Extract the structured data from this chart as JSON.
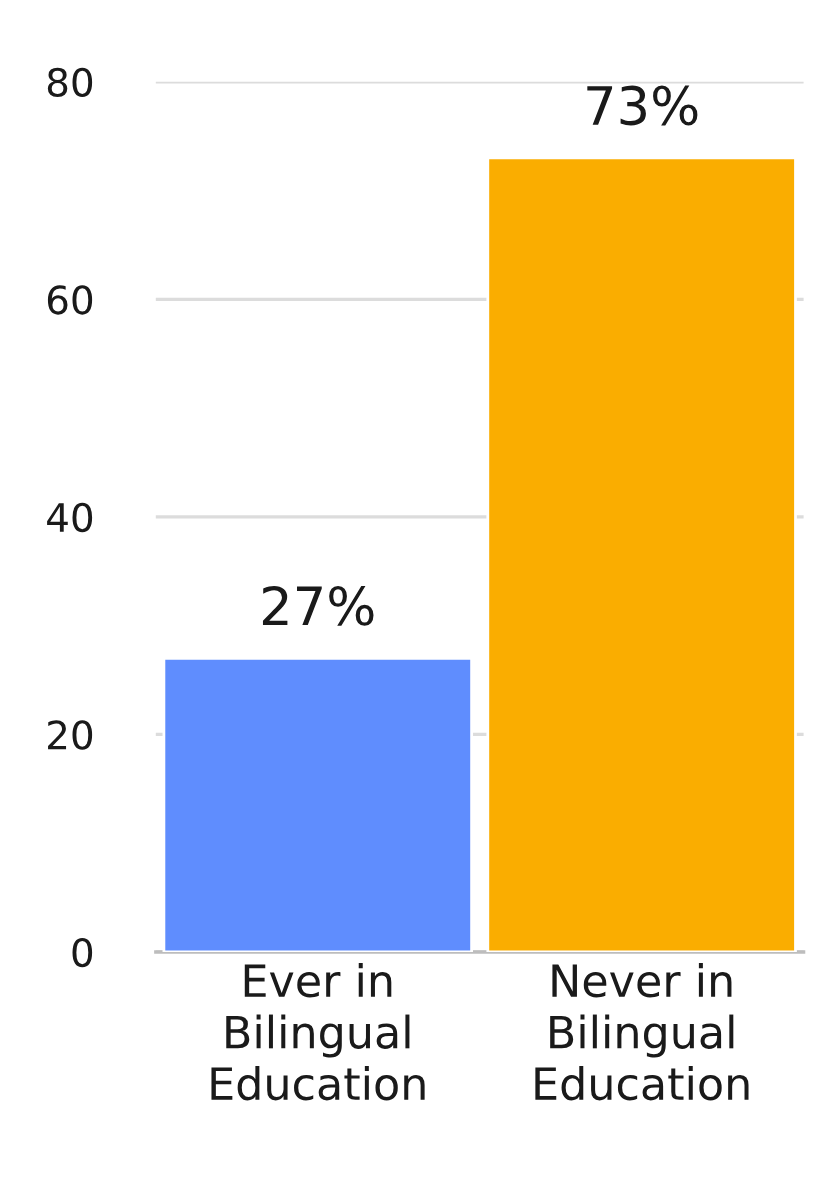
{
  "chart_data": {
    "type": "bar",
    "categories": [
      "Ever in\nBilingual\nEducation",
      "Never in\nBilingual\nEducation"
    ],
    "values": [
      27,
      73
    ],
    "colors": [
      "#5f8dfe",
      "#faad00"
    ],
    "value_labels": [
      "27%",
      "73%"
    ],
    "ylim": [
      0,
      80
    ],
    "yticks": [
      0,
      20,
      40,
      60,
      80
    ],
    "grid": "y",
    "legend": false
  }
}
